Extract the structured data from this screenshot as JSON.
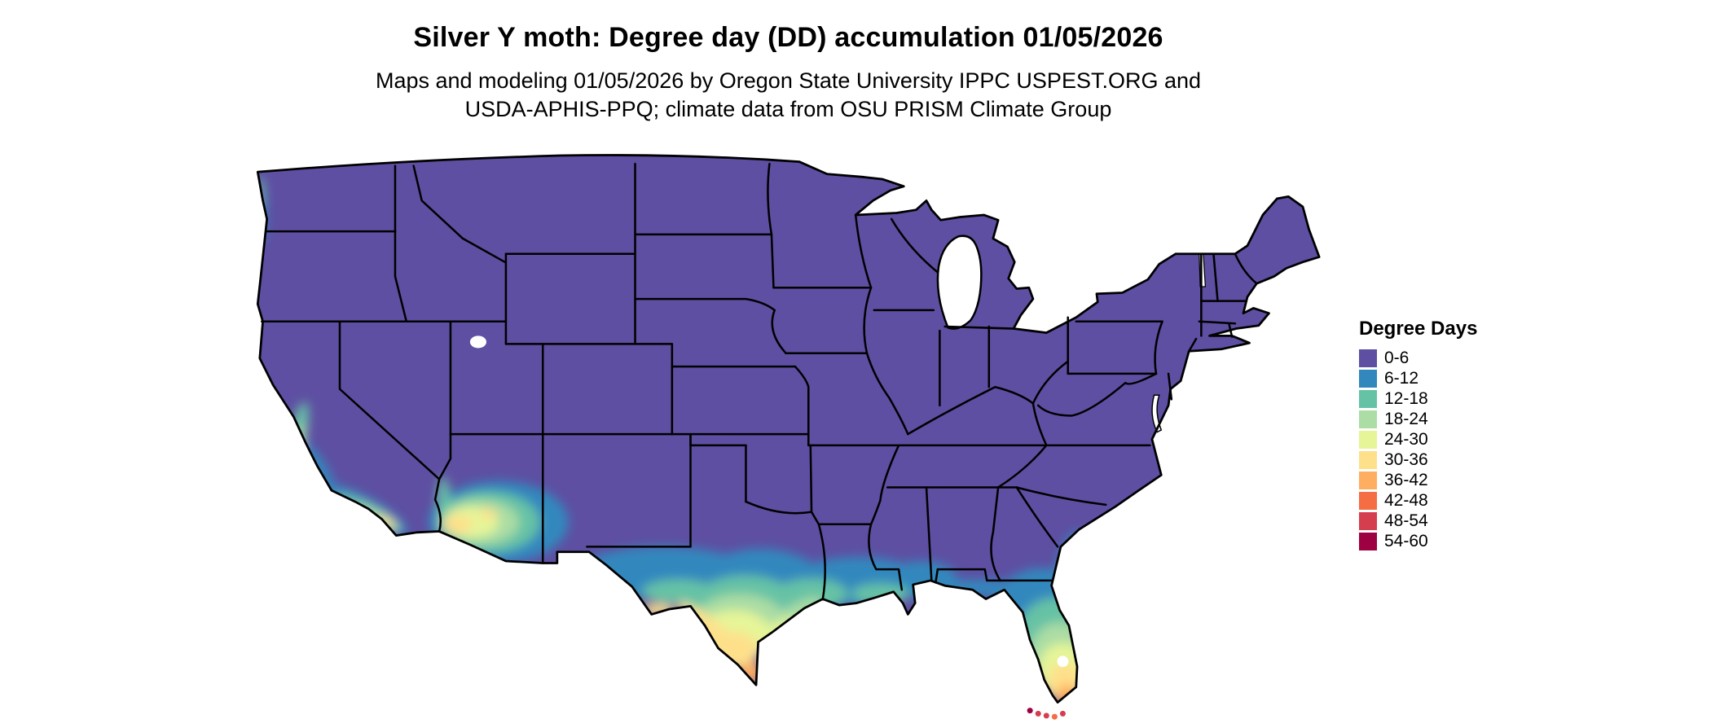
{
  "header": {
    "title": "Silver Y moth: Degree day (DD) accumulation 01/05/2026",
    "subtitle_line1": "Maps and modeling 01/05/2026 by Oregon State University IPPC USPEST.ORG and",
    "subtitle_line2": "USDA-APHIS-PPQ; climate data from OSU PRISM Climate Group"
  },
  "legend": {
    "title": "Degree Days",
    "entries": [
      {
        "label": "0-6",
        "color": "#5e4fa2"
      },
      {
        "label": "6-12",
        "color": "#3288bd"
      },
      {
        "label": "12-18",
        "color": "#66c2a5"
      },
      {
        "label": "18-24",
        "color": "#abdda4"
      },
      {
        "label": "24-30",
        "color": "#e6f598"
      },
      {
        "label": "30-36",
        "color": "#fee08b"
      },
      {
        "label": "36-42",
        "color": "#fdae61"
      },
      {
        "label": "42-48",
        "color": "#f46d43"
      },
      {
        "label": "48-54",
        "color": "#d53e4f"
      },
      {
        "label": "54-60",
        "color": "#9e0142"
      }
    ]
  },
  "map": {
    "region": "Contiguous United States",
    "unit": "degree days",
    "date": "01/05/2026",
    "border_color": "#000000",
    "water_color": "#ffffff",
    "dominant_class": "0-6",
    "observations": [
      "Most of the continental US is in the 0-6 degree day class",
      "South and central Texas grade from 6-12 through 30-36, peaking near 36-42 in the Rio Grande Valley",
      "Gulf Coast from Louisiana to the Florida panhandle shows 6-18",
      "Florida peninsula grades southward from 6-12 to 42-48 at the tip; the Florida Keys reach 48-60",
      "Southwest Arizona around Yuma and Phoenix shows 12-36",
      "Southern California coast and Central Valley show 6-30"
    ]
  }
}
